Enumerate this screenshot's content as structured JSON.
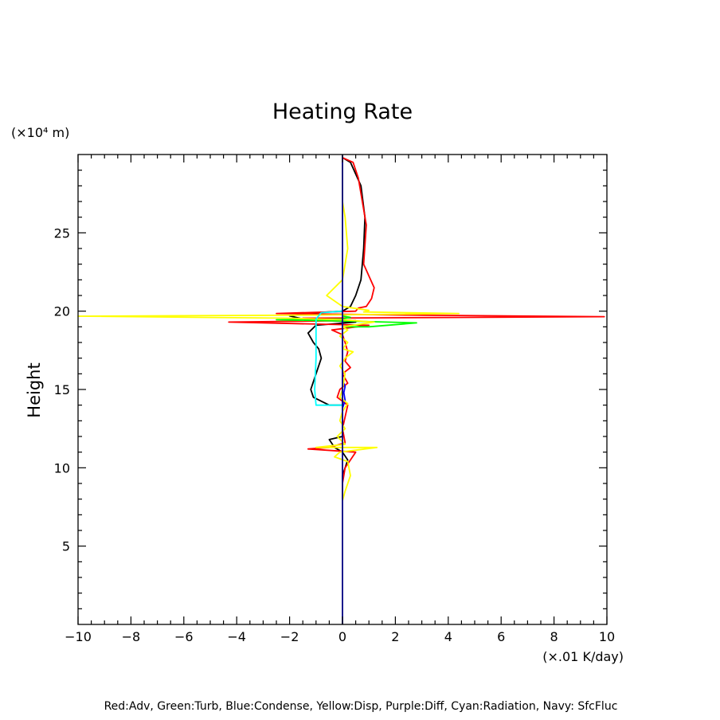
{
  "chart_data": {
    "type": "line",
    "title": "Heating Rate",
    "ylabel": "Height",
    "yunit": "(×10⁴ m)",
    "xunit": "(×.01 K/day)",
    "xlim": [
      -10,
      10
    ],
    "ylim": [
      0,
      30
    ],
    "xticks": [
      -10,
      -8,
      -6,
      -4,
      -2,
      0,
      2,
      4,
      6,
      8,
      10
    ],
    "xtick_labels": [
      "−10",
      "−8",
      "−6",
      "−4",
      "−2",
      "0",
      "2",
      "4",
      "6",
      "8",
      "10"
    ],
    "yticks": [
      5,
      10,
      15,
      20,
      25
    ],
    "yticklabels": [
      "5",
      "10",
      "15",
      "20",
      "25"
    ],
    "legend_text": "Red:Adv, Green:Turb, Blue:Condense, Yellow:Disp, Purple:Diff, Cyan:Radiation, Navy: SfcFluc",
    "grid": false,
    "series": [
      {
        "color": "#000000",
        "points": [
          [
            0,
            8
          ],
          [
            0,
            9.5
          ],
          [
            0.2,
            10.5
          ],
          [
            0,
            11
          ],
          [
            -0.3,
            11.3
          ],
          [
            -0.5,
            11.8
          ],
          [
            0,
            12
          ],
          [
            0,
            13
          ],
          [
            0,
            14
          ],
          [
            -0.5,
            14
          ],
          [
            -1.1,
            14.5
          ],
          [
            -1.2,
            15
          ],
          [
            -1.1,
            15.5
          ],
          [
            -1.0,
            16
          ],
          [
            -0.8,
            17
          ],
          [
            -0.9,
            17.6
          ],
          [
            -1.1,
            18
          ],
          [
            -1.3,
            18.6
          ],
          [
            -1.0,
            19.1
          ],
          [
            0.5,
            19.3
          ],
          [
            -1.5,
            19.5
          ],
          [
            -2.0,
            19.7
          ],
          [
            -1.0,
            19.9
          ],
          [
            0,
            20
          ],
          [
            0.3,
            20.3
          ],
          [
            0.5,
            21
          ],
          [
            0.7,
            22
          ],
          [
            0.8,
            24
          ],
          [
            0.85,
            26
          ],
          [
            0.7,
            28
          ],
          [
            0.3,
            29.5
          ],
          [
            0,
            29.8
          ]
        ]
      },
      {
        "color": "#ff0000",
        "points": [
          [
            0,
            8
          ],
          [
            0,
            9
          ],
          [
            0.1,
            10
          ],
          [
            0.3,
            10.5
          ],
          [
            0.5,
            11
          ],
          [
            -1.3,
            11.2
          ],
          [
            -0.5,
            11.3
          ],
          [
            0.1,
            11.6
          ],
          [
            0,
            12.5
          ],
          [
            0.2,
            14
          ],
          [
            -0.2,
            14.5
          ],
          [
            -0.1,
            15
          ],
          [
            0.2,
            15.4
          ],
          [
            0,
            16
          ],
          [
            0.3,
            16.4
          ],
          [
            0.1,
            16.8
          ],
          [
            0.2,
            17.4
          ],
          [
            0.1,
            18
          ],
          [
            0,
            18.5
          ],
          [
            -0.4,
            18.8
          ],
          [
            1.0,
            19.1
          ],
          [
            -4.3,
            19.3
          ],
          [
            0.5,
            19.4
          ],
          [
            -1.5,
            19.55
          ],
          [
            9.9,
            19.65
          ],
          [
            2.5,
            19.75
          ],
          [
            -2.5,
            19.85
          ],
          [
            0.5,
            20.0
          ],
          [
            0.6,
            20.2
          ],
          [
            0.9,
            20.3
          ],
          [
            1.1,
            20.8
          ],
          [
            1.2,
            21.5
          ],
          [
            0.8,
            23
          ],
          [
            0.9,
            25.5
          ],
          [
            0.6,
            28.5
          ],
          [
            0.4,
            29.5
          ],
          [
            0,
            29.8
          ]
        ]
      },
      {
        "color": "#00ff00",
        "points": [
          [
            0,
            19
          ],
          [
            1.0,
            19.0
          ],
          [
            2.8,
            19.25
          ],
          [
            0.5,
            19.35
          ],
          [
            -2.5,
            19.45
          ],
          [
            0,
            19.5
          ],
          [
            0.3,
            19.6
          ],
          [
            0,
            19.7
          ]
        ]
      },
      {
        "color": "#0000ff",
        "points": [
          [
            0,
            13
          ],
          [
            0,
            13.8
          ],
          [
            0.1,
            14.3
          ],
          [
            0.05,
            14.8
          ],
          [
            0.1,
            15.2
          ],
          [
            0,
            15.6
          ],
          [
            0,
            19.5
          ]
        ]
      },
      {
        "color": "#ffff00",
        "points": [
          [
            0,
            7.9
          ],
          [
            0.1,
            8.5
          ],
          [
            0.3,
            9.5
          ],
          [
            0.2,
            10.4
          ],
          [
            -0.3,
            10.7
          ],
          [
            -0.1,
            11.0
          ],
          [
            1.3,
            11.3
          ],
          [
            -1.0,
            11.3
          ],
          [
            0.1,
            11.5
          ],
          [
            -0.2,
            12
          ],
          [
            0.1,
            12.5
          ],
          [
            -0.1,
            13
          ],
          [
            0,
            13.6
          ],
          [
            0.2,
            14.1
          ],
          [
            -0.1,
            14.5
          ],
          [
            0,
            15
          ],
          [
            0.1,
            16
          ],
          [
            -0.1,
            16.5
          ],
          [
            0.1,
            17
          ],
          [
            0.4,
            17.4
          ],
          [
            0,
            17.6
          ],
          [
            0.2,
            18
          ],
          [
            -0.1,
            18.4
          ],
          [
            0.2,
            18.8
          ],
          [
            0,
            19.0
          ],
          [
            1.2,
            19.3
          ],
          [
            0,
            19.45
          ],
          [
            -2.0,
            19.55
          ],
          [
            -10,
            19.68
          ],
          [
            -1.0,
            19.75
          ],
          [
            4.4,
            19.85
          ],
          [
            0.8,
            19.95
          ],
          [
            1.0,
            20.05
          ],
          [
            0,
            20.3
          ],
          [
            -0.6,
            21
          ],
          [
            0,
            22
          ],
          [
            0.1,
            23
          ],
          [
            0.2,
            24
          ],
          [
            0.1,
            26
          ],
          [
            0,
            27
          ],
          [
            0,
            29.5
          ]
        ]
      },
      {
        "color": "#a020f0",
        "points": [
          [
            0,
            29.4
          ],
          [
            0,
            29.8
          ]
        ]
      },
      {
        "color": "#00ffff",
        "points": [
          [
            0,
            13.5
          ],
          [
            0,
            14
          ],
          [
            -1.0,
            14
          ],
          [
            -1.05,
            15
          ],
          [
            -1.0,
            17
          ],
          [
            -1.0,
            19.5
          ],
          [
            -0.8,
            19.9
          ],
          [
            0,
            20
          ]
        ]
      },
      {
        "color": "#000080",
        "points": [
          [
            0,
            0
          ],
          [
            0,
            30
          ]
        ]
      }
    ]
  }
}
